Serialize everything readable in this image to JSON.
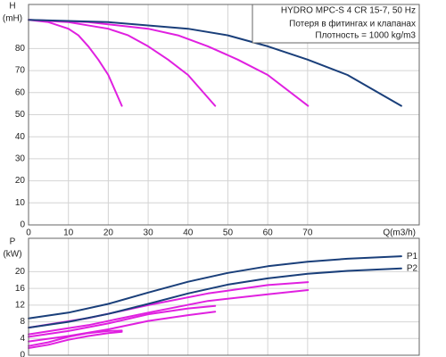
{
  "chart_data": [
    {
      "type": "line",
      "title": "HYDRO MPC-S 4 CR 15-7, 50 Hz",
      "annotations": [
        "Потеря в фитингах и клапанах",
        "Плотность = 1000 kg/m3"
      ],
      "ylabel": "H",
      "yunit": "(mH)",
      "xlabel": "Q(m3/h)",
      "xlim": [
        0,
        98
      ],
      "ylim": [
        0,
        100
      ],
      "xticks": [
        0,
        10,
        20,
        30,
        40,
        50,
        60,
        70
      ],
      "yticks": [
        0,
        10,
        20,
        30,
        40,
        50,
        60,
        70,
        80
      ],
      "grid": true,
      "series": [
        {
          "color": "#e020e0",
          "x": [
            0,
            5,
            10,
            12.5,
            15,
            17.5,
            20,
            23.4
          ],
          "values": [
            93,
            92,
            89,
            86,
            81,
            75,
            68,
            54
          ]
        },
        {
          "color": "#e020e0",
          "x": [
            0,
            10,
            20,
            25,
            30,
            35,
            40,
            46.8
          ],
          "values": [
            93,
            92,
            89,
            86,
            81,
            75,
            68,
            54
          ]
        },
        {
          "color": "#e020e0",
          "x": [
            0,
            15,
            30,
            37.5,
            45,
            52.5,
            60,
            70.1
          ],
          "values": [
            93,
            92,
            89,
            86,
            81,
            75,
            68,
            54
          ]
        },
        {
          "color": "#1a3f7a",
          "x": [
            0,
            20,
            40,
            50,
            60,
            70,
            80,
            93.5
          ],
          "values": [
            93,
            92,
            89,
            86,
            81,
            75,
            68,
            54
          ]
        }
      ]
    },
    {
      "type": "line",
      "ylabel": "P",
      "yunit": "(kW)",
      "xlim": [
        0,
        98
      ],
      "ylim": [
        0,
        28
      ],
      "yticks": [
        0,
        4,
        8,
        12,
        16,
        20
      ],
      "grid": true,
      "series": [
        {
          "color": "#e020e0",
          "x": [
            0,
            5,
            10,
            15,
            20,
            23.4
          ],
          "values": [
            1.7,
            2.5,
            3.7,
            4.6,
            5.3,
            5.6
          ]
        },
        {
          "color": "#e020e0",
          "x": [
            0,
            5,
            10,
            15,
            20,
            23.4
          ],
          "values": [
            2.2,
            3.1,
            4.4,
            5.3,
            5.8,
            5.9
          ]
        },
        {
          "color": "#e020e0",
          "x": [
            0,
            10,
            20,
            30,
            40,
            46.8
          ],
          "values": [
            3.3,
            4.6,
            6.2,
            8.2,
            9.6,
            10.4
          ]
        },
        {
          "color": "#e020e0",
          "x": [
            0,
            10,
            20,
            30,
            40,
            46.8
          ],
          "values": [
            4.4,
            5.8,
            7.6,
            9.8,
            11.2,
            11.8
          ]
        },
        {
          "color": "#e020e0",
          "x": [
            0,
            15,
            30,
            45,
            60,
            70.1
          ],
          "values": [
            5.0,
            7.2,
            10.2,
            13.0,
            14.6,
            15.6
          ]
        },
        {
          "color": "#e020e0",
          "x": [
            0,
            15,
            30,
            45,
            60,
            70.1
          ],
          "values": [
            6.6,
            8.9,
            12.0,
            14.8,
            16.8,
            17.5
          ]
        },
        {
          "name": "P2",
          "color": "#1a3f7a",
          "x": [
            0,
            10,
            20,
            30,
            40,
            50,
            60,
            70,
            80,
            93.5
          ],
          "values": [
            6.6,
            8.0,
            9.9,
            12.3,
            14.8,
            16.9,
            18.4,
            19.5,
            20.2,
            20.8
          ]
        },
        {
          "name": "P1",
          "color": "#1a3f7a",
          "x": [
            0,
            10,
            20,
            30,
            40,
            50,
            60,
            70,
            80,
            93.5
          ],
          "values": [
            8.8,
            10.2,
            12.3,
            15.0,
            17.6,
            19.7,
            21.3,
            22.4,
            23.1,
            23.7
          ]
        }
      ]
    }
  ]
}
